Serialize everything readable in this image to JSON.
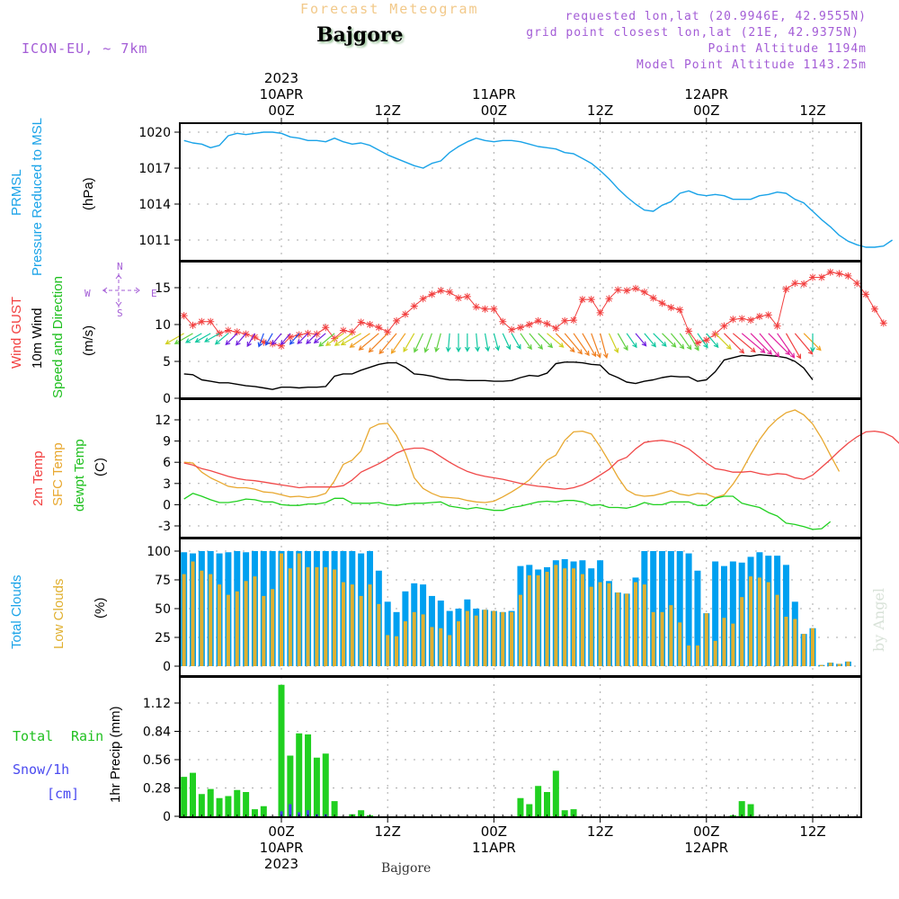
{
  "header": {
    "chart_title": "Forecast Meteogram",
    "location": "Bajgore",
    "model": "ICON-EU, ~ 7km",
    "requested": "requested lon,lat (20.9946E, 42.9555N)",
    "grid_point": "grid point closest lon,lat (21E, 42.9375N)",
    "point_altitude": "Point Altitude 1194m",
    "model_altitude": "Model Point Altitude 1143.25m",
    "footer_location": "Bajgore",
    "watermark": "by Angel"
  },
  "colors": {
    "pressure": "#1aa3e8",
    "gust": "#f24040",
    "wind": "#000000",
    "temp2m": "#f04848",
    "sfc": "#e8a830",
    "dewpt": "#20d020",
    "total_clouds": "#00a0f0",
    "low_clouds": "#e0b030",
    "rain": "#20d020",
    "snow": "#4040f0",
    "compass": "#a35cd6"
  },
  "panel_labels": {
    "pressure": {
      "line1": "PRMSL",
      "line2": "Pressure Reduced to MSL",
      "unit": "(hPa)"
    },
    "wind": {
      "line1": "Wind GUST",
      "line2": "10m Wind",
      "line3": "Speed and Direction",
      "unit": "(m/s)",
      "compass_n": "N",
      "compass_s": "S",
      "compass_w": "W",
      "compass_e": "E"
    },
    "temp": {
      "line1": "2m Temp",
      "line2": "SFC Temp",
      "line3": "dewpt Temp",
      "unit": "(C)"
    },
    "clouds": {
      "line1": "Total Clouds",
      "line2": "Low Clouds",
      "unit": "(%)"
    },
    "precip": {
      "line1": "Total",
      "line1b": "Rain",
      "line2": "Snow/1h",
      "line3": "[cm]",
      "unit": "1hr Precip (mm)"
    }
  },
  "x_axis_top": [
    {
      "h": 0,
      "lines": [
        "2023",
        "10APR",
        "00Z"
      ]
    },
    {
      "h": 12,
      "lines": [
        "",
        "",
        "12Z"
      ]
    },
    {
      "h": 24,
      "lines": [
        "",
        "11APR",
        "00Z"
      ]
    },
    {
      "h": 36,
      "lines": [
        "",
        "",
        "12Z"
      ]
    },
    {
      "h": 48,
      "lines": [
        "",
        "12APR",
        "00Z"
      ]
    },
    {
      "h": 60,
      "lines": [
        "",
        "",
        "12Z"
      ]
    }
  ],
  "x_axis_bottom": [
    {
      "h": 0,
      "lines": [
        "00Z",
        "10APR",
        "2023"
      ]
    },
    {
      "h": 12,
      "lines": [
        "12Z",
        "",
        ""
      ]
    },
    {
      "h": 24,
      "lines": [
        "00Z",
        "11APR",
        ""
      ]
    },
    {
      "h": 36,
      "lines": [
        "12Z",
        "",
        ""
      ]
    },
    {
      "h": 48,
      "lines": [
        "00Z",
        "12APR",
        ""
      ]
    },
    {
      "h": 60,
      "lines": [
        "12Z",
        "",
        ""
      ]
    }
  ],
  "chart_data": [
    {
      "type": "line",
      "title": "PRMSL Pressure Reduced to MSL",
      "ylabel": "(hPa)",
      "ylim": [
        1009,
        1021.5
      ],
      "yticks": [
        1011,
        1014,
        1017,
        1020
      ],
      "x_units": "hours from 2023-04-10 00Z",
      "x_start": -11,
      "x_step": 1,
      "series": [
        {
          "name": "PRMSL",
          "values": [
            1019.3,
            1019.1,
            1019.0,
            1018.7,
            1018.9,
            1019.7,
            1019.9,
            1019.8,
            1019.9,
            1020.0,
            1020.0,
            1019.9,
            1019.6,
            1019.5,
            1019.3,
            1019.3,
            1019.2,
            1019.5,
            1019.2,
            1019.0,
            1019.1,
            1018.9,
            1018.5,
            1018.1,
            1017.8,
            1017.5,
            1017.2,
            1017.0,
            1017.4,
            1017.6,
            1018.3,
            1018.8,
            1019.2,
            1019.5,
            1019.3,
            1019.2,
            1019.3,
            1019.3,
            1019.2,
            1019.0,
            1018.8,
            1018.7,
            1018.6,
            1018.3,
            1018.2,
            1017.8,
            1017.4,
            1016.8,
            1016.1,
            1015.3,
            1014.6,
            1014.0,
            1013.5,
            1013.4,
            1013.9,
            1014.2,
            1014.9,
            1015.1,
            1014.8,
            1014.7,
            1014.8,
            1014.7,
            1014.4,
            1014.4,
            1014.4,
            1014.7,
            1014.8,
            1015.0,
            1014.9,
            1014.4,
            1014.1,
            1013.4,
            1012.7,
            1012.1,
            1011.4,
            1010.9,
            1010.6,
            1010.4,
            1010.4,
            1010.5,
            1011.0
          ]
        }
      ]
    },
    {
      "type": "line",
      "title": "Wind GUST / 10m Wind Speed and Direction",
      "ylabel": "(m/s)",
      "ylim": [
        0,
        18.5
      ],
      "yticks": [
        0,
        5,
        10,
        15
      ],
      "x_units": "hours from 2023-04-10 00Z",
      "x_start": -11,
      "x_step": 1,
      "series": [
        {
          "name": "Wind GUST",
          "values": [
            11.2,
            9.9,
            10.4,
            10.4,
            8.8,
            9.2,
            9.0,
            8.7,
            8.3,
            7.6,
            7.4,
            7.1,
            8.3,
            8.6,
            8.8,
            8.7,
            9.6,
            8.1,
            9.2,
            9.0,
            10.3,
            10.0,
            9.6,
            9.0,
            10.5,
            11.4,
            12.5,
            13.5,
            14.1,
            14.6,
            14.4,
            13.6,
            13.8,
            12.4,
            12.1,
            12.1,
            10.4,
            9.3,
            9.6,
            10.0,
            10.5,
            10.1,
            9.5,
            10.5,
            10.6,
            13.4,
            13.4,
            11.6,
            13.5,
            14.7,
            14.6,
            14.9,
            14.4,
            13.6,
            12.9,
            12.3,
            12.0,
            9.1,
            7.5,
            7.9,
            8.7,
            9.8,
            10.7,
            10.8,
            10.6,
            11.1,
            11.3,
            9.8,
            14.8,
            15.6,
            15.5,
            16.4,
            16.4,
            17.1,
            16.9,
            16.6,
            15.6,
            14.1,
            12.1,
            10.2
          ]
        },
        {
          "name": "10m Wind",
          "values": [
            3.3,
            3.2,
            2.5,
            2.3,
            2.1,
            2.1,
            1.9,
            1.7,
            1.6,
            1.4,
            1.2,
            1.5,
            1.5,
            1.4,
            1.5,
            1.5,
            1.6,
            3.0,
            3.3,
            3.3,
            3.8,
            4.2,
            4.6,
            4.8,
            4.8,
            4.2,
            3.3,
            3.2,
            3.0,
            2.7,
            2.5,
            2.5,
            2.4,
            2.4,
            2.4,
            2.3,
            2.3,
            2.4,
            2.8,
            3.1,
            3.0,
            3.4,
            4.7,
            4.9,
            4.9,
            4.8,
            4.6,
            4.5,
            3.3,
            2.8,
            2.2,
            2.0,
            2.3,
            2.5,
            2.8,
            3.0,
            2.9,
            2.9,
            2.3,
            2.5,
            3.6,
            5.2,
            5.5,
            5.8,
            5.7,
            5.9,
            5.8,
            5.7,
            5.5,
            5.0,
            4.1,
            2.5
          ]
        }
      ],
      "wind_dir_deg": [
        60,
        60,
        60,
        60,
        60,
        50,
        45,
        40,
        30,
        20,
        30,
        40,
        40,
        40,
        45,
        45,
        50,
        50,
        55,
        55,
        60,
        55,
        50,
        45,
        40,
        35,
        30,
        25,
        20,
        15,
        5,
        0,
        0,
        355,
        350,
        345,
        335,
        330,
        325,
        320,
        315,
        310,
        315,
        320,
        325,
        330,
        340,
        345,
        335,
        330,
        325,
        320,
        320,
        315,
        315,
        320,
        325,
        330,
        325,
        320,
        315,
        315,
        310,
        310,
        315,
        320,
        315,
        325,
        330,
        320,
        315,
        0
      ]
    },
    {
      "type": "line",
      "title": "2m Temp / SFC Temp / dewpt Temp",
      "ylabel": "(C)",
      "ylim": [
        -4.5,
        14
      ],
      "yticks": [
        -3,
        0,
        3,
        6,
        9,
        12
      ],
      "x_units": "hours from 2023-04-10 00Z",
      "x_start": -11,
      "x_step": 1,
      "series": [
        {
          "name": "2m Temp",
          "values": [
            5.9,
            5.6,
            5.1,
            4.8,
            4.4,
            4.0,
            3.7,
            3.5,
            3.4,
            3.2,
            3.0,
            2.8,
            2.6,
            2.4,
            2.5,
            2.5,
            2.5,
            2.5,
            2.7,
            3.5,
            4.6,
            5.2,
            5.8,
            6.5,
            7.3,
            7.8,
            8.0,
            8.0,
            7.6,
            6.8,
            6.0,
            5.3,
            4.7,
            4.3,
            4.0,
            3.8,
            3.6,
            3.3,
            3.0,
            2.8,
            2.6,
            2.5,
            2.3,
            2.2,
            2.4,
            2.8,
            3.4,
            4.2,
            5.0,
            6.2,
            6.7,
            7.9,
            8.8,
            9.0,
            9.1,
            8.9,
            8.5,
            7.9,
            6.9,
            5.9,
            5.1,
            4.9,
            4.6,
            4.6,
            4.7,
            4.4,
            4.2,
            4.4,
            4.3,
            3.8,
            3.6,
            4.2,
            5.3,
            6.4,
            7.6,
            8.7,
            9.6,
            10.3,
            10.4,
            10.2,
            9.6,
            8.4,
            7.1
          ]
        },
        {
          "name": "SFC Temp",
          "values": [
            6.0,
            5.9,
            4.6,
            3.8,
            3.2,
            2.6,
            2.4,
            2.4,
            2.2,
            1.8,
            1.7,
            1.4,
            1.1,
            1.2,
            1.0,
            1.2,
            1.6,
            3.4,
            5.7,
            6.3,
            7.6,
            10.8,
            11.4,
            11.5,
            9.8,
            7.3,
            3.8,
            2.3,
            1.6,
            1.1,
            1.0,
            0.9,
            0.6,
            0.4,
            0.3,
            0.5,
            1.1,
            1.8,
            2.6,
            3.5,
            4.9,
            6.3,
            7.0,
            9.1,
            10.3,
            10.4,
            10.0,
            8.2,
            6.1,
            3.9,
            2.1,
            1.4,
            1.2,
            1.3,
            1.6,
            2.0,
            1.5,
            1.3,
            1.6,
            1.5,
            1.0,
            1.4,
            2.9,
            4.8,
            7.1,
            9.2,
            10.9,
            12.1,
            13.0,
            13.4,
            12.7,
            11.4,
            9.4,
            7.0,
            4.7
          ]
        },
        {
          "name": "dewpt Temp",
          "values": [
            0.8,
            1.6,
            1.2,
            0.7,
            0.3,
            0.3,
            0.5,
            0.8,
            0.7,
            0.4,
            0.4,
            0.0,
            -0.1,
            -0.1,
            0.1,
            0.1,
            0.3,
            0.9,
            0.9,
            0.2,
            0.2,
            0.2,
            0.3,
            0.0,
            -0.1,
            0.1,
            0.2,
            0.2,
            0.3,
            0.4,
            -0.2,
            -0.4,
            -0.6,
            -0.4,
            -0.6,
            -0.8,
            -0.8,
            -0.4,
            -0.2,
            0.1,
            0.4,
            0.5,
            0.4,
            0.6,
            0.6,
            0.4,
            -0.1,
            0.0,
            -0.4,
            -0.4,
            -0.5,
            -0.2,
            0.3,
            0.0,
            0.0,
            0.4,
            0.4,
            0.4,
            -0.1,
            -0.1,
            0.9,
            1.2,
            1.2,
            0.2,
            -0.1,
            -0.4,
            -1.1,
            -1.6,
            -2.6,
            -2.8,
            -3.1,
            -3.5,
            -3.4,
            -2.4
          ]
        }
      ]
    },
    {
      "type": "bar",
      "title": "Total Clouds / Low Clouds",
      "ylabel": "(%)",
      "ylim": [
        -5,
        108
      ],
      "yticks": [
        0,
        25,
        50,
        75,
        100
      ],
      "x_units": "hours from 2023-04-10 00Z",
      "x_start": -11,
      "x_step": 1,
      "series": [
        {
          "name": "Total Clouds",
          "values": [
            99,
            98,
            100,
            100,
            98,
            99,
            100,
            99,
            100,
            100,
            100,
            100,
            100,
            100,
            100,
            100,
            100,
            100,
            100,
            100,
            98,
            100,
            83,
            56,
            47,
            65,
            72,
            71,
            61,
            57,
            48,
            50,
            58,
            50,
            49,
            48,
            47,
            48,
            87,
            88,
            84,
            86,
            92,
            93,
            91,
            92,
            85,
            92,
            74,
            64,
            63,
            77,
            100,
            100,
            100,
            100,
            100,
            98,
            83,
            46,
            91,
            87,
            91,
            90,
            95,
            99,
            96,
            96,
            88,
            56,
            28,
            33,
            1,
            3,
            2,
            4
          ]
        },
        {
          "name": "Low Clouds",
          "values": [
            80,
            91,
            83,
            80,
            71,
            62,
            65,
            74,
            78,
            61,
            67,
            98,
            85,
            98,
            86,
            86,
            86,
            84,
            73,
            71,
            61,
            71,
            54,
            27,
            26,
            39,
            47,
            45,
            34,
            33,
            27,
            39,
            48,
            44,
            50,
            50,
            47,
            47,
            62,
            79,
            79,
            82,
            88,
            85,
            85,
            80,
            69,
            73,
            72,
            76,
            76,
            73,
            71,
            47,
            47,
            53,
            38,
            18,
            18,
            53,
            22,
            42,
            37,
            60,
            78,
            77,
            73,
            62,
            43,
            41,
            38,
            36,
            33,
            18,
            18,
            19,
            19
          ]
        }
      ]
    },
    {
      "type": "bar",
      "title": "1hr Precip (mm)",
      "ylabel": "1hr Precip (mm)",
      "ylim": [
        0,
        1.26
      ],
      "yticks": [
        0,
        0.28,
        0.56,
        0.84,
        1.12
      ],
      "x_units": "hours from 2023-04-10 00Z",
      "x_start": -11,
      "x_step": 1,
      "series": [
        {
          "name": "Total Rain",
          "values": [
            0.39,
            0.43,
            0.22,
            0.27,
            0.18,
            0.2,
            0.26,
            0.24,
            0.07,
            0.1,
            0,
            1.3,
            0.6,
            0.82,
            0.81,
            0.58,
            0.62,
            0.15,
            0,
            0.02,
            0.06,
            0.01,
            0,
            0,
            0,
            0,
            0,
            0,
            0,
            0,
            0,
            0,
            0,
            0,
            0,
            0,
            0,
            0,
            0.18,
            0.12,
            0.3,
            0.24,
            0.45,
            0.06,
            0.07,
            0,
            0,
            0,
            0,
            0,
            0,
            0,
            0,
            0,
            0,
            0,
            0,
            0,
            0,
            0,
            0,
            0,
            0.01,
            0.15,
            0.12,
            0,
            0,
            0,
            0,
            0,
            0,
            0,
            0,
            0,
            0,
            0
          ]
        },
        {
          "name": "Snow/1h",
          "values": [
            0,
            0,
            0,
            0,
            0,
            0,
            0,
            0,
            0,
            0,
            0,
            0.05,
            0.12,
            0.04,
            0.06,
            0.02,
            0.02,
            0,
            0,
            0,
            0,
            0,
            0,
            0,
            0,
            0,
            0,
            0,
            0,
            0,
            0,
            0,
            0,
            0,
            0,
            0,
            0,
            0,
            0,
            0,
            0,
            0,
            0,
            0,
            0,
            0,
            0,
            0,
            0,
            0,
            0,
            0,
            0,
            0,
            0,
            0,
            0,
            0,
            0,
            0,
            0,
            0,
            0,
            0,
            0,
            0,
            0,
            0,
            0,
            0,
            0,
            0,
            0,
            0,
            0,
            0
          ]
        }
      ]
    }
  ]
}
